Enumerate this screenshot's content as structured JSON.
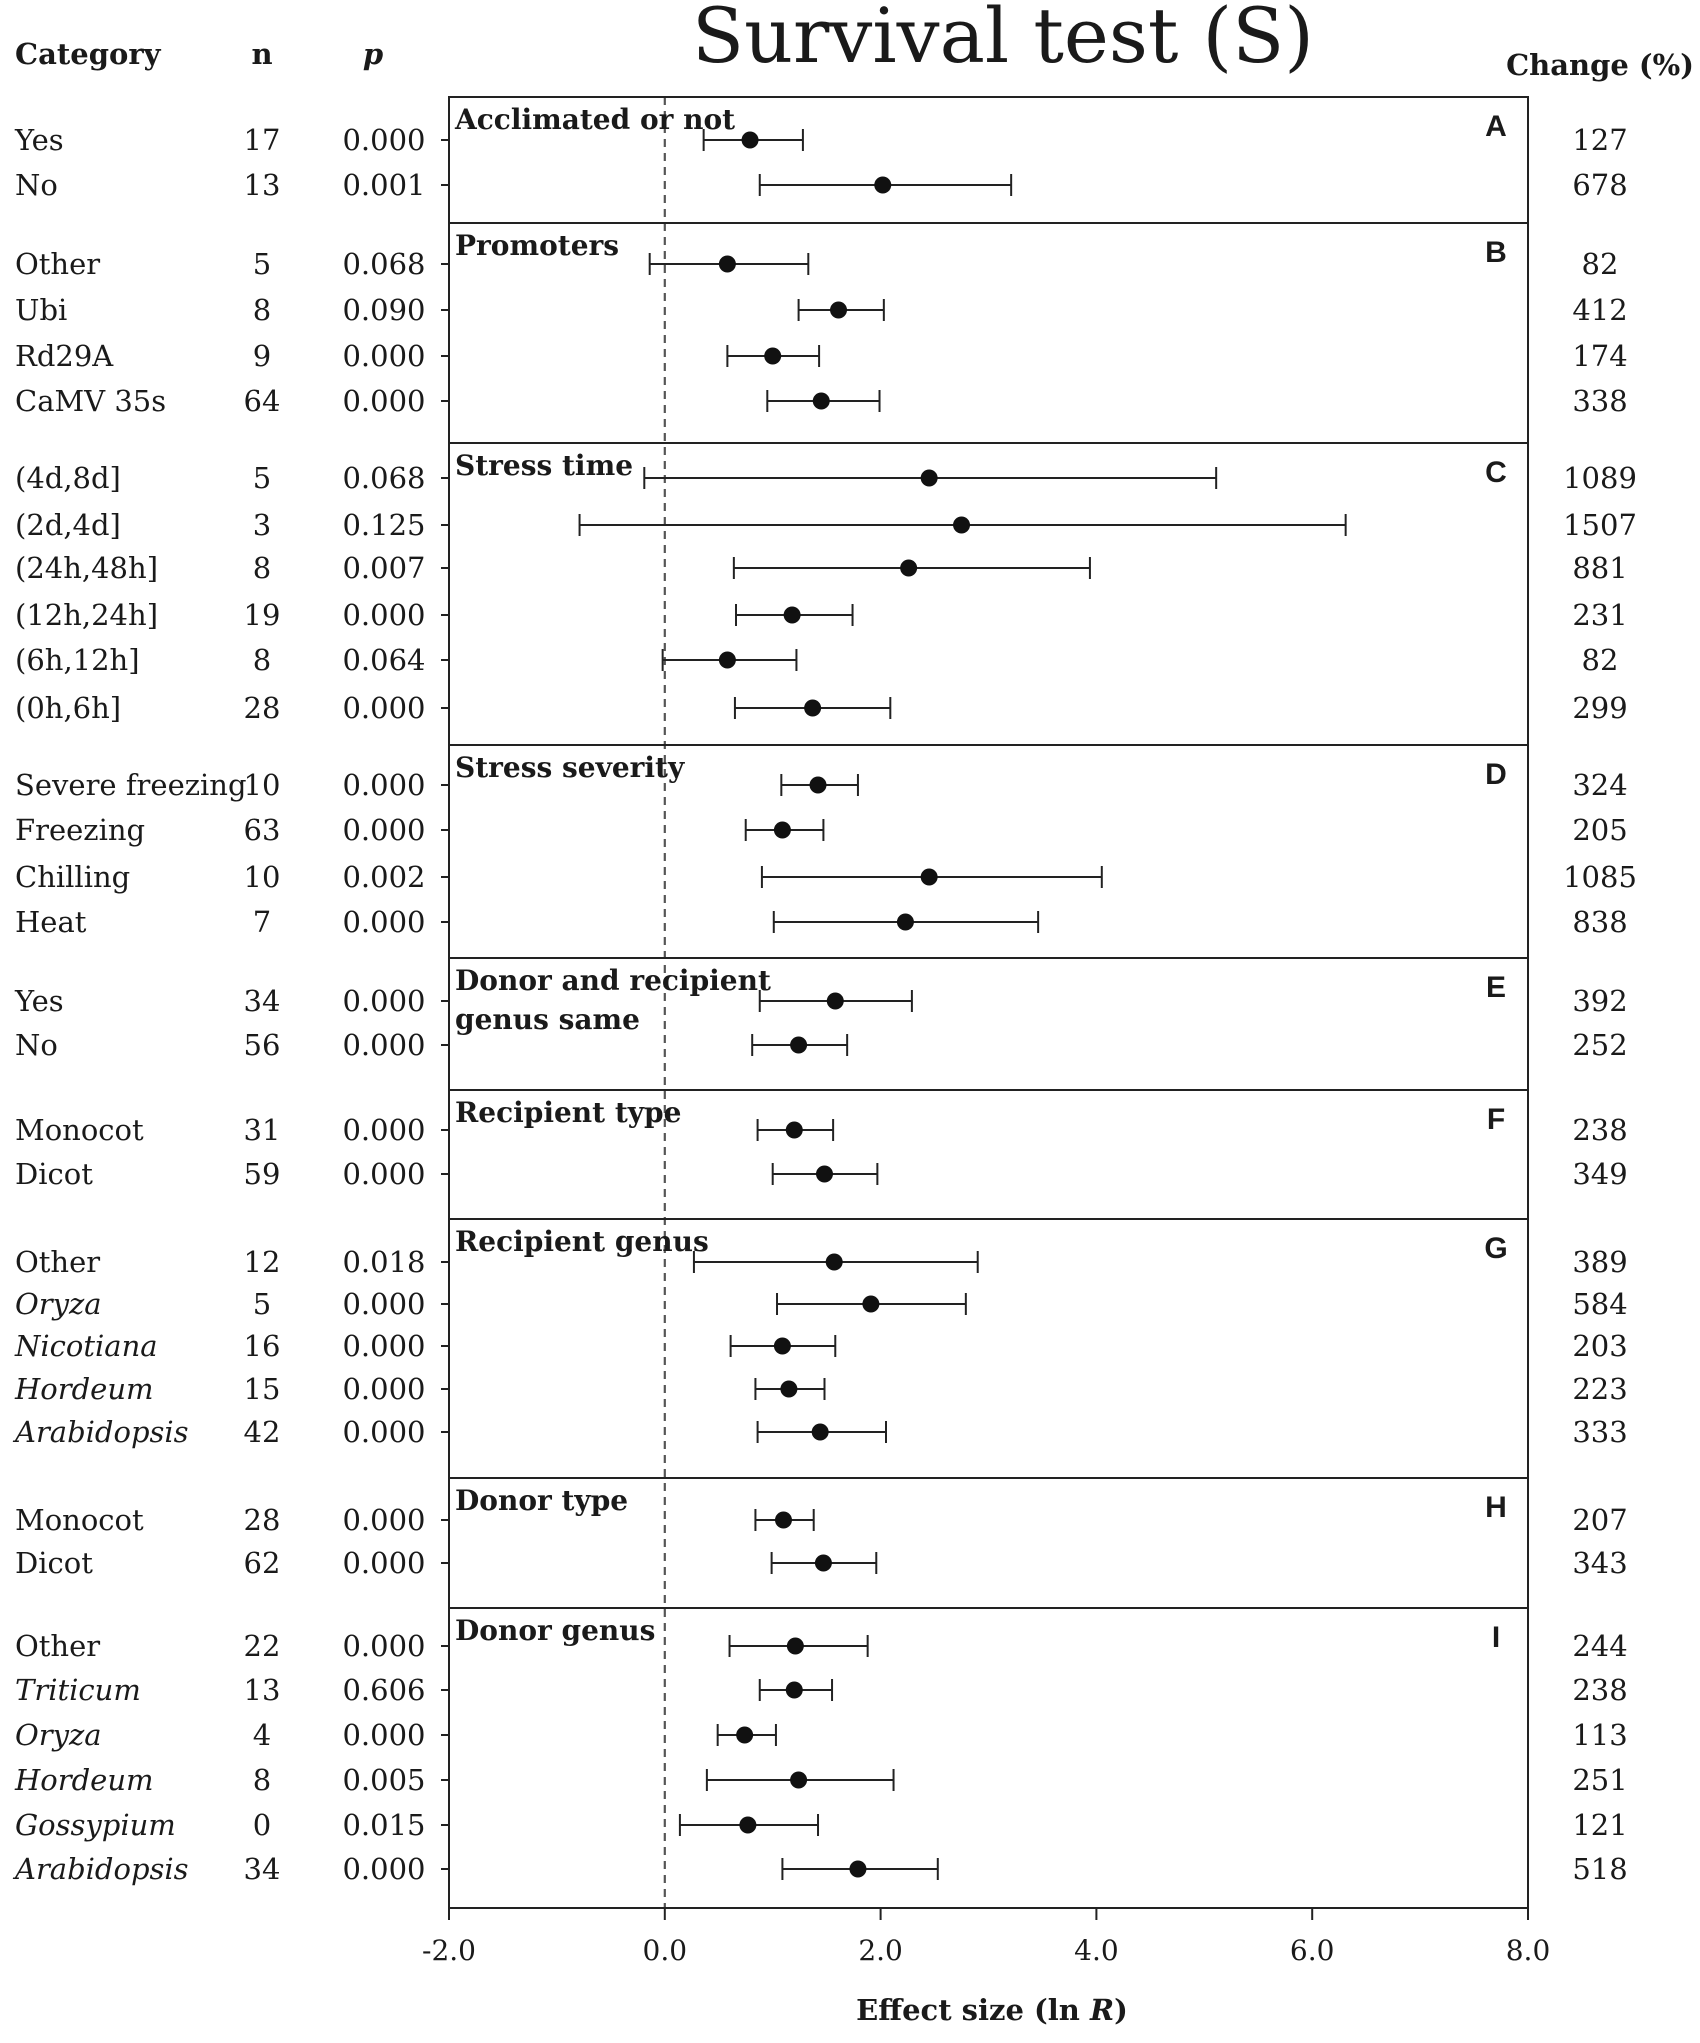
{
  "chart_data": {
    "type": "forest",
    "title": "Survival test (S)",
    "columns": {
      "category": "Category",
      "n": "n",
      "p": "p",
      "change": "Change (%)"
    },
    "xlabel": {
      "prefix": "Effect size (ln ",
      "var": "R",
      "suffix": ")"
    },
    "xlim": [
      -2.0,
      8.0
    ],
    "xticks": [
      "-2.0",
      "0.0",
      "2.0",
      "4.0",
      "6.0",
      "8.0"
    ],
    "reference_line": 0.0,
    "panels": [
      {
        "letter": "A",
        "title": [
          "Acclimated or not"
        ],
        "rows": [
          {
            "label": "Yes",
            "italic": false,
            "n": "17",
            "p": "0.000",
            "change": "127",
            "mean": 0.79,
            "lo": 0.36,
            "hi": 1.28
          },
          {
            "label": "No",
            "italic": false,
            "n": "13",
            "p": "0.001",
            "change": "678",
            "mean": 2.02,
            "lo": 0.88,
            "hi": 3.21
          }
        ]
      },
      {
        "letter": "B",
        "title": [
          "Promoters"
        ],
        "rows": [
          {
            "label": "Other",
            "italic": false,
            "n": "5",
            "p": "0.068",
            "change": "82",
            "mean": 0.58,
            "lo": -0.14,
            "hi": 1.33
          },
          {
            "label": "Ubi",
            "italic": false,
            "n": "8",
            "p": "0.090",
            "change": "412",
            "mean": 1.61,
            "lo": 1.24,
            "hi": 2.03
          },
          {
            "label": "Rd29A",
            "italic": false,
            "n": "9",
            "p": "0.000",
            "change": "174",
            "mean": 1.0,
            "lo": 0.58,
            "hi": 1.43
          },
          {
            "label": "CaMV 35s",
            "italic": false,
            "n": "64",
            "p": "0.000",
            "change": "338",
            "mean": 1.45,
            "lo": 0.95,
            "hi": 1.99
          }
        ]
      },
      {
        "letter": "C",
        "title": [
          "Stress time"
        ],
        "rows": [
          {
            "label": "(4d,8d]",
            "italic": false,
            "n": "5",
            "p": "0.068",
            "change": "1089",
            "mean": 2.45,
            "lo": -0.19,
            "hi": 5.11
          },
          {
            "label": "(2d,4d]",
            "italic": false,
            "n": "3",
            "p": "0.125",
            "change": "1507",
            "mean": 2.75,
            "lo": -0.79,
            "hi": 6.31
          },
          {
            "label": "(24h,48h]",
            "italic": false,
            "n": "8",
            "p": "0.007",
            "change": "881",
            "mean": 2.26,
            "lo": 0.64,
            "hi": 3.94
          },
          {
            "label": "(12h,24h]",
            "italic": false,
            "n": "19",
            "p": "0.000",
            "change": "231",
            "mean": 1.18,
            "lo": 0.66,
            "hi": 1.74
          },
          {
            "label": "(6h,12h]",
            "italic": false,
            "n": "8",
            "p": "0.064",
            "change": "82",
            "mean": 0.58,
            "lo": -0.02,
            "hi": 1.22
          },
          {
            "label": "(0h,6h]",
            "italic": false,
            "n": "28",
            "p": "0.000",
            "change": "299",
            "mean": 1.37,
            "lo": 0.65,
            "hi": 2.09
          }
        ]
      },
      {
        "letter": "D",
        "title": [
          "Stress severity"
        ],
        "rows": [
          {
            "label": "Severe freezing",
            "italic": false,
            "n": "10",
            "p": "0.000",
            "change": "324",
            "mean": 1.42,
            "lo": 1.08,
            "hi": 1.79
          },
          {
            "label": "Freezing",
            "italic": false,
            "n": "63",
            "p": "0.000",
            "change": "205",
            "mean": 1.09,
            "lo": 0.75,
            "hi": 1.47
          },
          {
            "label": "Chilling",
            "italic": false,
            "n": "10",
            "p": "0.002",
            "change": "1085",
            "mean": 2.45,
            "lo": 0.9,
            "hi": 4.05
          },
          {
            "label": "Heat",
            "italic": false,
            "n": "7",
            "p": "0.000",
            "change": "838",
            "mean": 2.23,
            "lo": 1.01,
            "hi": 3.46
          }
        ]
      },
      {
        "letter": "E",
        "title": [
          "Donor and recipient",
          "genus same"
        ],
        "rows": [
          {
            "label": "Yes",
            "italic": false,
            "n": "34",
            "p": "0.000",
            "change": "392",
            "mean": 1.58,
            "lo": 0.88,
            "hi": 2.29
          },
          {
            "label": "No",
            "italic": false,
            "n": "56",
            "p": "0.000",
            "change": "252",
            "mean": 1.24,
            "lo": 0.81,
            "hi": 1.69
          }
        ]
      },
      {
        "letter": "F",
        "title": [
          "Recipient type"
        ],
        "rows": [
          {
            "label": "Monocot",
            "italic": false,
            "n": "31",
            "p": "0.000",
            "change": "238",
            "mean": 1.2,
            "lo": 0.86,
            "hi": 1.56
          },
          {
            "label": "Dicot",
            "italic": false,
            "n": "59",
            "p": "0.000",
            "change": "349",
            "mean": 1.48,
            "lo": 1.0,
            "hi": 1.97
          }
        ]
      },
      {
        "letter": "G",
        "title": [
          "Recipient genus"
        ],
        "rows": [
          {
            "label": "Other",
            "italic": false,
            "n": "12",
            "p": "0.018",
            "change": "389",
            "mean": 1.57,
            "lo": 0.27,
            "hi": 2.9
          },
          {
            "label": "Oryza",
            "italic": true,
            "n": "5",
            "p": "0.000",
            "change": "584",
            "mean": 1.91,
            "lo": 1.04,
            "hi": 2.79
          },
          {
            "label": "Nicotiana",
            "italic": true,
            "n": "16",
            "p": "0.000",
            "change": "203",
            "mean": 1.09,
            "lo": 0.61,
            "hi": 1.58
          },
          {
            "label": "Hordeum",
            "italic": true,
            "n": "15",
            "p": "0.000",
            "change": "223",
            "mean": 1.15,
            "lo": 0.84,
            "hi": 1.48
          },
          {
            "label": "Arabidopsis",
            "italic": true,
            "n": "42",
            "p": "0.000",
            "change": "333",
            "mean": 1.44,
            "lo": 0.86,
            "hi": 2.05
          }
        ]
      },
      {
        "letter": "H",
        "title": [
          "Donor type"
        ],
        "rows": [
          {
            "label": "Monocot",
            "italic": false,
            "n": "28",
            "p": "0.000",
            "change": "207",
            "mean": 1.1,
            "lo": 0.84,
            "hi": 1.38
          },
          {
            "label": "Dicot",
            "italic": false,
            "n": "62",
            "p": "0.000",
            "change": "343",
            "mean": 1.47,
            "lo": 0.99,
            "hi": 1.96
          }
        ]
      },
      {
        "letter": "I",
        "title": [
          "Donor genus"
        ],
        "rows": [
          {
            "label": "Other",
            "italic": false,
            "n": "22",
            "p": "0.000",
            "change": "244",
            "mean": 1.21,
            "lo": 0.6,
            "hi": 1.88
          },
          {
            "label": "Triticum",
            "italic": true,
            "n": "13",
            "p": "0.606",
            "change": "238",
            "mean": 1.2,
            "lo": 0.88,
            "hi": 1.55
          },
          {
            "label": "Oryza",
            "italic": true,
            "n": "4",
            "p": "0.000",
            "change": "113",
            "mean": 0.74,
            "lo": 0.49,
            "hi": 1.03
          },
          {
            "label": "Hordeum",
            "italic": true,
            "n": "8",
            "p": "0.005",
            "change": "251",
            "mean": 1.24,
            "lo": 0.39,
            "hi": 2.12
          },
          {
            "label": "Gossypium",
            "italic": true,
            "n": "0",
            "p": "0.015",
            "change": "121",
            "mean": 0.77,
            "lo": 0.14,
            "hi": 1.42
          },
          {
            "label": "Arabidopsis",
            "italic": true,
            "n": "34",
            "p": "0.000",
            "change": "518",
            "mean": 1.79,
            "lo": 1.09,
            "hi": 2.53
          }
        ]
      }
    ]
  }
}
